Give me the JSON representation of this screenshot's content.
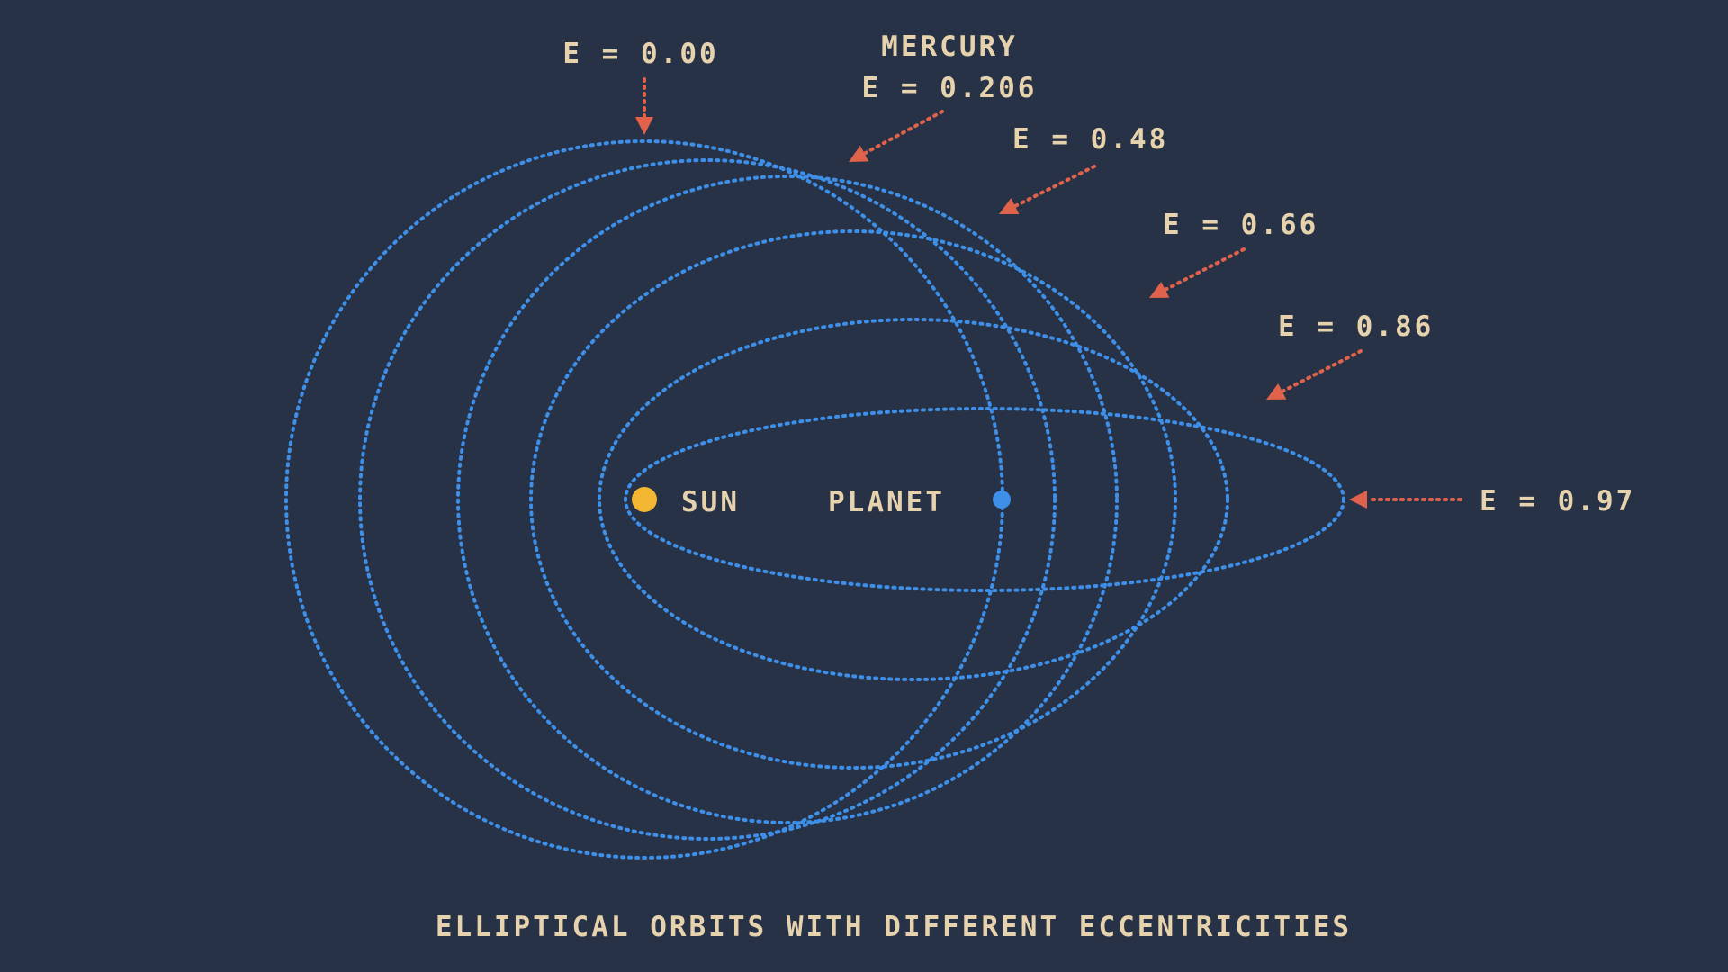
{
  "title": "ELLIPTICAL ORBITS WITH DIFFERENT ECCENTRICITIES",
  "sun_label": "SUN",
  "planet_label": "PLANET",
  "orbits": [
    {
      "eccentricity": 0.0,
      "label": "E = 0.00",
      "sublabel": ""
    },
    {
      "eccentricity": 0.206,
      "label": "E = 0.206",
      "sublabel": "MERCURY"
    },
    {
      "eccentricity": 0.48,
      "label": "E = 0.48",
      "sublabel": ""
    },
    {
      "eccentricity": 0.66,
      "label": "E = 0.66",
      "sublabel": ""
    },
    {
      "eccentricity": 0.86,
      "label": "E = 0.86",
      "sublabel": ""
    },
    {
      "eccentricity": 0.97,
      "label": "E = 0.97",
      "sublabel": ""
    }
  ],
  "colors": {
    "background": "#273247",
    "orbit": "#3d8fe8",
    "arrow": "#e0624a",
    "text": "#e6d2ac",
    "sun": "#f2b632",
    "planet": "#3d8fe8"
  }
}
